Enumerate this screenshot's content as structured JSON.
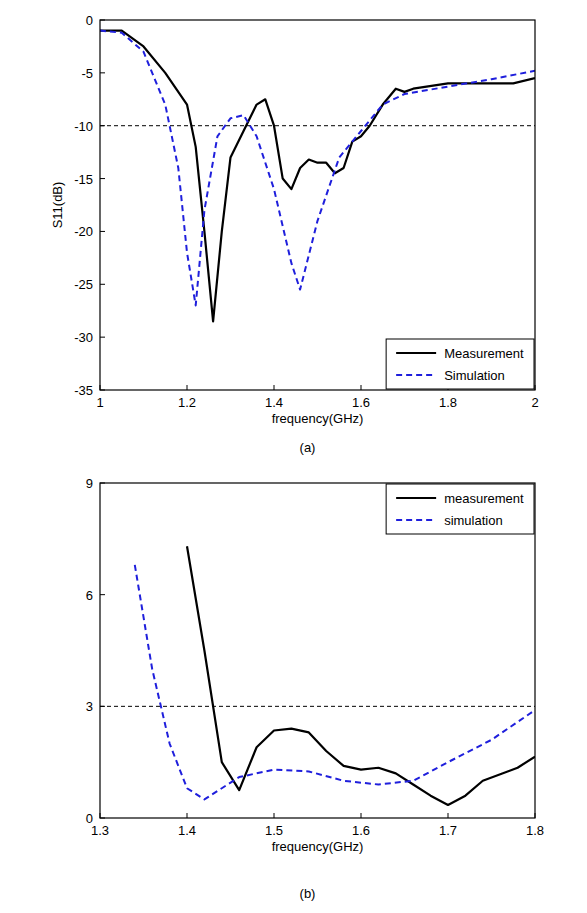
{
  "chart_data": [
    {
      "type": "line",
      "caption": "(a)",
      "x_label": "frequency(GHz)",
      "y_label": "S11(dB)",
      "xlim": [
        1,
        2
      ],
      "xticks": [
        1,
        1.2,
        1.4,
        1.6,
        1.8,
        2
      ],
      "ylim": [
        -35,
        0
      ],
      "yticks": [
        -35,
        -30,
        -25,
        -20,
        -15,
        -10,
        -5,
        0
      ],
      "hlines": [
        -10
      ],
      "legend": "lower right",
      "series": [
        {
          "name": "Measurement",
          "color": "#000000",
          "line_style": "solid",
          "x": [
            1.0,
            1.05,
            1.1,
            1.15,
            1.2,
            1.22,
            1.24,
            1.26,
            1.28,
            1.3,
            1.33,
            1.36,
            1.38,
            1.4,
            1.42,
            1.44,
            1.46,
            1.48,
            1.5,
            1.52,
            1.54,
            1.56,
            1.58,
            1.6,
            1.62,
            1.65,
            1.68,
            1.7,
            1.72,
            1.8,
            1.9,
            1.95,
            2.0
          ],
          "values": [
            -1,
            -1,
            -2.5,
            -5,
            -8,
            -12,
            -20,
            -28.5,
            -20,
            -13,
            -10.5,
            -8,
            -7.5,
            -10,
            -15,
            -16,
            -14,
            -13.2,
            -13.5,
            -13.5,
            -14.5,
            -14,
            -11.5,
            -11,
            -10,
            -8,
            -6.5,
            -6.8,
            -6.5,
            -6,
            -6,
            -6,
            -5.5
          ]
        },
        {
          "name": "Simulation",
          "color": "#1f1fdc",
          "line_style": "dashed",
          "x": [
            1.0,
            1.05,
            1.1,
            1.15,
            1.18,
            1.2,
            1.22,
            1.24,
            1.27,
            1.3,
            1.33,
            1.36,
            1.4,
            1.44,
            1.46,
            1.5,
            1.55,
            1.6,
            1.65,
            1.7,
            1.8,
            1.9,
            2.0
          ],
          "values": [
            -1,
            -1.2,
            -3,
            -8,
            -14,
            -22,
            -27,
            -18,
            -11,
            -9.3,
            -9,
            -11,
            -16,
            -23,
            -25.5,
            -19,
            -13,
            -10.5,
            -8,
            -7,
            -6.3,
            -5.6,
            -4.8
          ]
        }
      ]
    },
    {
      "type": "line",
      "caption": "(b)",
      "x_label": "frequency(GHz)",
      "xlim": [
        1.3,
        1.8
      ],
      "xticks": [
        1.3,
        1.4,
        1.5,
        1.6,
        1.7,
        1.8
      ],
      "ylim": [
        0,
        9
      ],
      "yticks": [
        0,
        3,
        6,
        9
      ],
      "hlines": [
        3
      ],
      "legend": "upper right",
      "series": [
        {
          "name": "measurement",
          "color": "#000000",
          "line_style": "solid",
          "x": [
            1.4,
            1.42,
            1.44,
            1.46,
            1.48,
            1.5,
            1.52,
            1.54,
            1.56,
            1.58,
            1.6,
            1.62,
            1.64,
            1.66,
            1.68,
            1.7,
            1.72,
            1.74,
            1.78,
            1.8
          ],
          "values": [
            7.3,
            4.5,
            1.5,
            0.75,
            1.9,
            2.35,
            2.4,
            2.3,
            1.8,
            1.4,
            1.3,
            1.35,
            1.2,
            0.9,
            0.6,
            0.35,
            0.6,
            1.0,
            1.35,
            1.65
          ]
        },
        {
          "name": "simulation",
          "color": "#1f1fdc",
          "line_style": "dashed",
          "x": [
            1.34,
            1.36,
            1.38,
            1.4,
            1.42,
            1.44,
            1.46,
            1.5,
            1.54,
            1.58,
            1.62,
            1.66,
            1.7,
            1.75,
            1.8
          ],
          "values": [
            6.8,
            4.0,
            2.0,
            0.8,
            0.5,
            0.8,
            1.1,
            1.3,
            1.25,
            1.0,
            0.9,
            1.0,
            1.5,
            2.1,
            2.9
          ]
        }
      ]
    }
  ]
}
